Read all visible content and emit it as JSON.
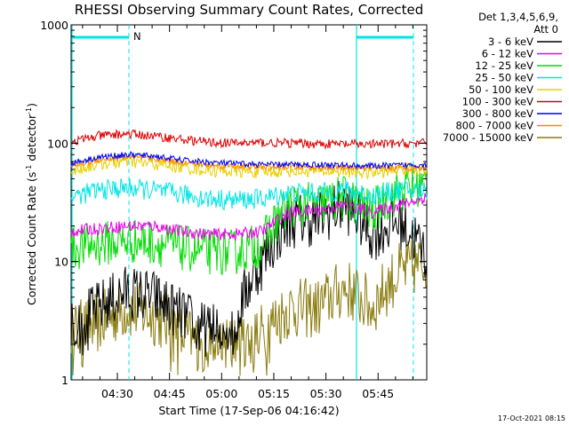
{
  "chart_data": {
    "type": "line",
    "title": "RHESSI Observing Summary Count Rates, Corrected",
    "xlabel": "Start Time (17-Sep-06 04:16:42)",
    "ylabel": "Corrected Count Rate (s",
    "ylabel_sup1": "-1",
    "ylabel_mid": " detector",
    "ylabel_sup2": "-1",
    "ylabel_end": ")",
    "yscale": "log",
    "xlim": [
      "04:16:42",
      "05:59:00"
    ],
    "ylim": [
      1,
      1000
    ],
    "x_ticks": [
      "04:30",
      "04:45",
      "05:00",
      "05:15",
      "05:30",
      "05:45"
    ],
    "y_ticks": [
      "1",
      "10",
      "100",
      "1000"
    ],
    "legend_header": [
      "Det 1,3,4,5,6,9,",
      "Att 0"
    ],
    "legend_position": "right",
    "footer": "17-Oct-2021 08:15",
    "marker_label": "N",
    "bands": [
      {
        "name": "3 - 6 keV",
        "color": "#000000",
        "profile": [
          2.6,
          4,
          5.5,
          5,
          3.5,
          2.5,
          2.8,
          10,
          22,
          23,
          30,
          17,
          22,
          11
        ],
        "noise": 0.55,
        "floor": 2.6
      },
      {
        "name": "6 - 12 keV",
        "color": "#ee00ee",
        "profile": [
          18,
          19,
          20,
          20,
          18,
          17,
          17,
          18,
          26,
          27,
          30,
          26,
          30,
          35
        ],
        "noise": 0.12
      },
      {
        "name": "12 - 25 keV",
        "color": "#00dd00",
        "profile": [
          13,
          14,
          15,
          14.5,
          13,
          12,
          12,
          14,
          30,
          30,
          35,
          26,
          40,
          45
        ],
        "noise": 0.45
      },
      {
        "name": "25 - 50 keV",
        "color": "#00e5e5",
        "profile": [
          35,
          40,
          42,
          40,
          37,
          34,
          33,
          34,
          38,
          38,
          40,
          36,
          40,
          40
        ],
        "noise": 0.2
      },
      {
        "name": "50 - 100 keV",
        "color": "#e8d000",
        "profile": [
          58,
          67,
          70,
          67,
          63,
          59,
          58,
          57,
          59,
          58,
          58,
          56,
          60,
          60
        ],
        "noise": 0.13
      },
      {
        "name": "100 - 300 keV",
        "color": "#dd0000",
        "profile": [
          102,
          115,
          120,
          115,
          108,
          102,
          100,
          101,
          100,
          99,
          98,
          98,
          99,
          100
        ],
        "noise": 0.09
      },
      {
        "name": "300 - 800 keV",
        "color": "#0000ee",
        "profile": [
          68,
          76,
          80,
          78,
          72,
          69,
          67,
          66,
          66,
          66,
          65,
          64,
          65,
          66
        ],
        "noise": 0.06
      },
      {
        "name": "800 - 7000 keV",
        "color": "#ff8800",
        "profile": [
          64,
          72,
          76,
          74,
          69,
          65,
          64,
          63,
          63,
          62,
          62,
          61,
          62,
          62
        ],
        "noise": 0.06
      },
      {
        "name": "7000 - 15000 keV",
        "color": "#8b7d10",
        "profile": [
          2.5,
          3,
          4,
          3.5,
          2.5,
          1.8,
          2,
          2.5,
          4,
          4,
          6,
          4,
          8,
          10
        ],
        "noise": 0.6,
        "floor": 1.8
      }
    ]
  }
}
